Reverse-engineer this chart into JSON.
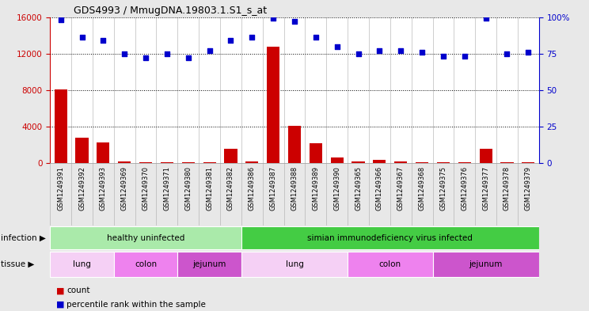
{
  "title": "GDS4993 / MmugDNA.19803.1.S1_s_at",
  "samples": [
    "GSM1249391",
    "GSM1249392",
    "GSM1249393",
    "GSM1249369",
    "GSM1249370",
    "GSM1249371",
    "GSM1249380",
    "GSM1249381",
    "GSM1249382",
    "GSM1249386",
    "GSM1249387",
    "GSM1249388",
    "GSM1249389",
    "GSM1249390",
    "GSM1249365",
    "GSM1249366",
    "GSM1249367",
    "GSM1249368",
    "GSM1249375",
    "GSM1249376",
    "GSM1249377",
    "GSM1249378",
    "GSM1249379"
  ],
  "counts": [
    8100,
    2800,
    2300,
    200,
    150,
    80,
    100,
    100,
    1600,
    200,
    12800,
    4100,
    2200,
    650,
    200,
    350,
    200,
    100,
    80,
    80,
    1600,
    100,
    130
  ],
  "percentiles": [
    98,
    86,
    84,
    75,
    72,
    75,
    72,
    77,
    84,
    86,
    99,
    97,
    86,
    80,
    75,
    77,
    77,
    76,
    73,
    73,
    99,
    75,
    76
  ],
  "infection_groups": [
    {
      "label": "healthy uninfected",
      "start": 0,
      "end": 9,
      "color": "#aaeaaa"
    },
    {
      "label": "simian immunodeficiency virus infected",
      "start": 9,
      "end": 23,
      "color": "#44cc44"
    }
  ],
  "tissue_groups": [
    {
      "label": "lung",
      "start": 0,
      "end": 3,
      "color": "#f5d0f5"
    },
    {
      "label": "colon",
      "start": 3,
      "end": 6,
      "color": "#ee82ee"
    },
    {
      "label": "jejunum",
      "start": 6,
      "end": 9,
      "color": "#cc55cc"
    },
    {
      "label": "lung",
      "start": 9,
      "end": 14,
      "color": "#f5d0f5"
    },
    {
      "label": "colon",
      "start": 14,
      "end": 18,
      "color": "#ee82ee"
    },
    {
      "label": "jejunum",
      "start": 18,
      "end": 23,
      "color": "#cc55cc"
    }
  ],
  "bar_color": "#cc0000",
  "dot_color": "#0000cc",
  "left_ylim": [
    0,
    16000
  ],
  "left_yticks": [
    0,
    4000,
    8000,
    12000,
    16000
  ],
  "right_ylim": [
    0,
    100
  ],
  "right_yticks": [
    0,
    25,
    50,
    75,
    100
  ],
  "right_yticklabels": [
    "0",
    "25",
    "50",
    "75",
    "100%"
  ],
  "bg_color": "#e8e8e8",
  "plot_bg": "#ffffff",
  "grid_color": "#000000",
  "label_fontsize": 7.5,
  "tick_fontsize": 7.5,
  "sample_fontsize": 6.0
}
